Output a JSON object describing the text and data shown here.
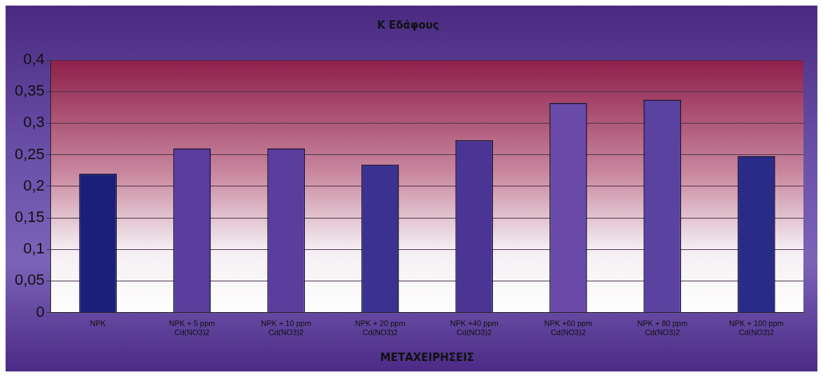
{
  "chart_data": {
    "type": "bar",
    "title": "Κ Εδάφους",
    "xlabel": "ΜΕΤΑΧΕΙΡΗΣΕΙΣ",
    "categories": [
      "NPK",
      "NPK + 5 ppm\nCd(NO3)2",
      "NPK + 10 ppm\nCd(NO3)2",
      "NPK + 20 ppm\nCd(NO3)2",
      "NPK +40 ppm\nCd(NO3)2",
      "NPK +60 ppm\nCd(NO3)2",
      "NPK + 80 ppm\nCd(NO3)2",
      "NPK + 100 ppm\nCd(NO3)2"
    ],
    "values": [
      0.22,
      0.26,
      0.26,
      0.234,
      0.273,
      0.332,
      0.337,
      0.248
    ],
    "colors": [
      "#1c1f7a",
      "#5a3d9c",
      "#5a3d9c",
      "#3b3190",
      "#4a3595",
      "#6a4aa8",
      "#5a42a0",
      "#2a2a88"
    ],
    "ylim": [
      0,
      0.4
    ],
    "yticks": [
      {
        "value": 0,
        "label": "0"
      },
      {
        "value": 0.05,
        "label": "0,05"
      },
      {
        "value": 0.1,
        "label": "0,1"
      },
      {
        "value": 0.15,
        "label": "0,15"
      },
      {
        "value": 0.2,
        "label": "0,2"
      },
      {
        "value": 0.25,
        "label": "0,25"
      },
      {
        "value": 0.3,
        "label": "0,3"
      },
      {
        "value": 0.35,
        "label": "0,35"
      },
      {
        "value": 0.4,
        "label": "0,4"
      }
    ],
    "grid": "y"
  }
}
